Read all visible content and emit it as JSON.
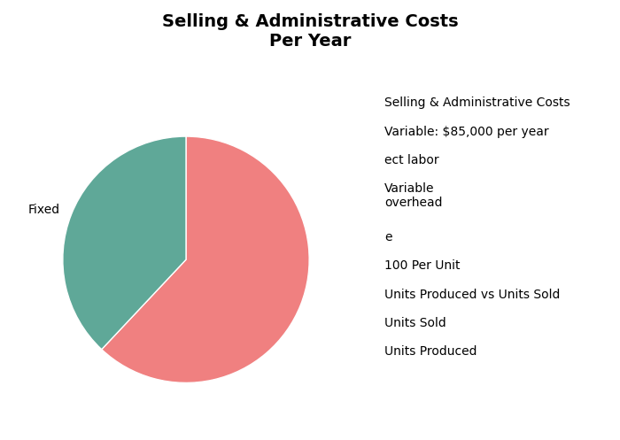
{
  "chart_data": {
    "type": "pie",
    "title": "Selling & Administrative Costs\nPer Year",
    "categories": [
      null,
      "Fixed"
    ],
    "values": [
      62,
      38
    ],
    "colors": [
      "#f08080",
      "#5fa898"
    ],
    "annotations": [
      "Selling & Administrative Costs",
      "Variable: $85,000 per year",
      "ect labor",
      "Variable\noverhead",
      "e",
      "100 Per Unit",
      "Units Produced vs Units Sold",
      "Units Sold",
      "Units Produced"
    ]
  }
}
